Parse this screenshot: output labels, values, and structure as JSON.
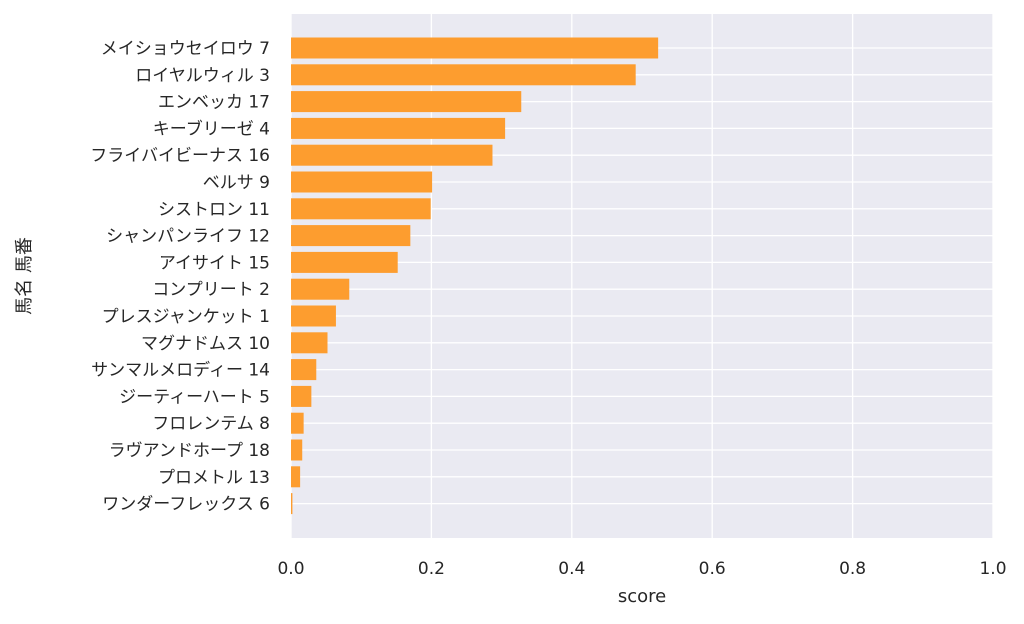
{
  "chart_data": {
    "type": "bar",
    "orientation": "horizontal",
    "xlabel": "score",
    "ylabel": "馬名 馬番",
    "xlim": [
      0.0,
      1.0
    ],
    "xticks": [
      "0.0",
      "0.2",
      "0.4",
      "0.6",
      "0.8",
      "1.0"
    ],
    "grid": true,
    "colors": {
      "bar": "#fd9d2f",
      "plot_background": "#eaeaf2",
      "grid": "#ffffff"
    },
    "categories": [
      "メイショウセイロウ 7",
      "ロイヤルウィル 3",
      "エンベッカ 17",
      "キーブリーゼ 4",
      "フライバイビーナス 16",
      "ベルサ 9",
      "シストロン 11",
      "シャンパンライフ 12",
      "アイサイト 15",
      "コンプリート 2",
      "プレスジャンケット 1",
      "マグナドムス 10",
      "サンマルメロディー 14",
      "ジーティーハート 5",
      "フロレンテム 8",
      "ラヴアンドホープ 18",
      "プロメトル 13",
      "ワンダーフレックス 6"
    ],
    "values": [
      0.523,
      0.491,
      0.328,
      0.305,
      0.287,
      0.201,
      0.199,
      0.17,
      0.152,
      0.083,
      0.064,
      0.052,
      0.036,
      0.029,
      0.018,
      0.016,
      0.013,
      0.002
    ]
  }
}
